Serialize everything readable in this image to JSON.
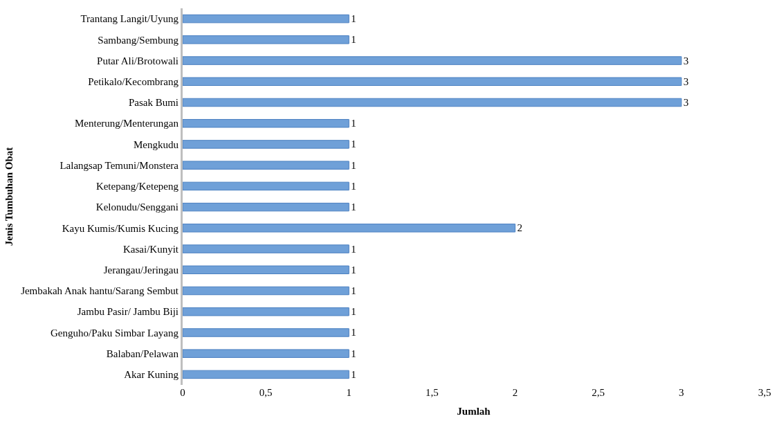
{
  "chart_data": {
    "type": "bar",
    "orientation": "horizontal",
    "xlabel": "Jumlah",
    "ylabel": "Jenis Tumbuhan Obat",
    "categories": [
      "Trantang Langit/Uyung",
      "Sambang/Sembung",
      "Putar Ali/Brotowali",
      "Petikalo/Kecombrang",
      "Pasak Bumi",
      "Menterung/Menterungan",
      "Mengkudu",
      "Lalangsap Temuni/Monstera",
      "Ketepang/Ketepeng",
      "Kelonudu/Senggani",
      "Kayu Kumis/Kumis Kucing",
      "Kasai/Kunyit",
      "Jerangau/Jeringau",
      "Jembakah Anak hantu/Sarang Sembut",
      "Jambu Pasir/ Jambu Biji",
      "Genguho/Paku Simbar Layang",
      "Balaban/Pelawan",
      "Akar Kuning"
    ],
    "values": [
      1,
      1,
      3,
      3,
      3,
      1,
      1,
      1,
      1,
      1,
      2,
      1,
      1,
      1,
      1,
      1,
      1,
      1
    ],
    "color": "#6fa0d8",
    "xlim": [
      0,
      3.5
    ],
    "xticks": [
      0,
      {
        "value": 0.5,
        "label": "0,5"
      },
      1,
      {
        "value": 1.5,
        "label": "1,5"
      },
      2,
      {
        "value": 2.5,
        "label": "2,5"
      },
      3,
      {
        "value": 3.5,
        "label": "3,5"
      }
    ],
    "data_labels": true,
    "grid": false,
    "legend": false
  }
}
